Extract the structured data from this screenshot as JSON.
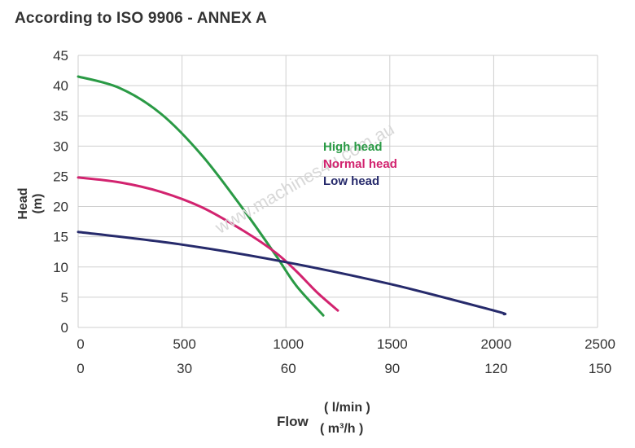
{
  "chart_data": {
    "type": "line",
    "title": "According to ISO 9906 - ANNEX A",
    "ylabel": "Head (m)",
    "xlabel": "Flow",
    "x_units": [
      "( l/min )",
      "( m³/h )"
    ],
    "x_ticks_lmin": [
      "0",
      "500",
      "1000",
      "1500",
      "2000",
      "2500"
    ],
    "x_ticks_m3h": [
      "0",
      "30",
      "60",
      "90",
      "120",
      "150"
    ],
    "y_ticks": [
      "0",
      "5",
      "10",
      "15",
      "20",
      "25",
      "30",
      "35",
      "40",
      "45"
    ],
    "xlim": [
      0,
      2500
    ],
    "ylim": [
      0,
      45
    ],
    "grid": true,
    "legend_position": "upper-right-of-curves",
    "watermark": "www.machines4u.com.au",
    "series": [
      {
        "name": "High head",
        "color": "#2a9a45",
        "points": [
          [
            0,
            41.5
          ],
          [
            200,
            39.6
          ],
          [
            400,
            35.3
          ],
          [
            600,
            28.3
          ],
          [
            800,
            19.3
          ],
          [
            950,
            12.0
          ],
          [
            1050,
            6.9
          ],
          [
            1180,
            2.0
          ]
        ]
      },
      {
        "name": "Normal head",
        "color": "#d2236f",
        "points": [
          [
            0,
            24.8
          ],
          [
            200,
            24.0
          ],
          [
            400,
            22.4
          ],
          [
            600,
            19.8
          ],
          [
            800,
            15.9
          ],
          [
            950,
            12.4
          ],
          [
            1050,
            9.3
          ],
          [
            1150,
            5.8
          ],
          [
            1250,
            2.8
          ]
        ]
      },
      {
        "name": "Low head",
        "color": "#262a6b",
        "points": [
          [
            0,
            15.8
          ],
          [
            500,
            13.7
          ],
          [
            1000,
            10.8
          ],
          [
            1500,
            7.2
          ],
          [
            2000,
            2.8
          ],
          [
            2050,
            2.2
          ]
        ]
      }
    ]
  }
}
